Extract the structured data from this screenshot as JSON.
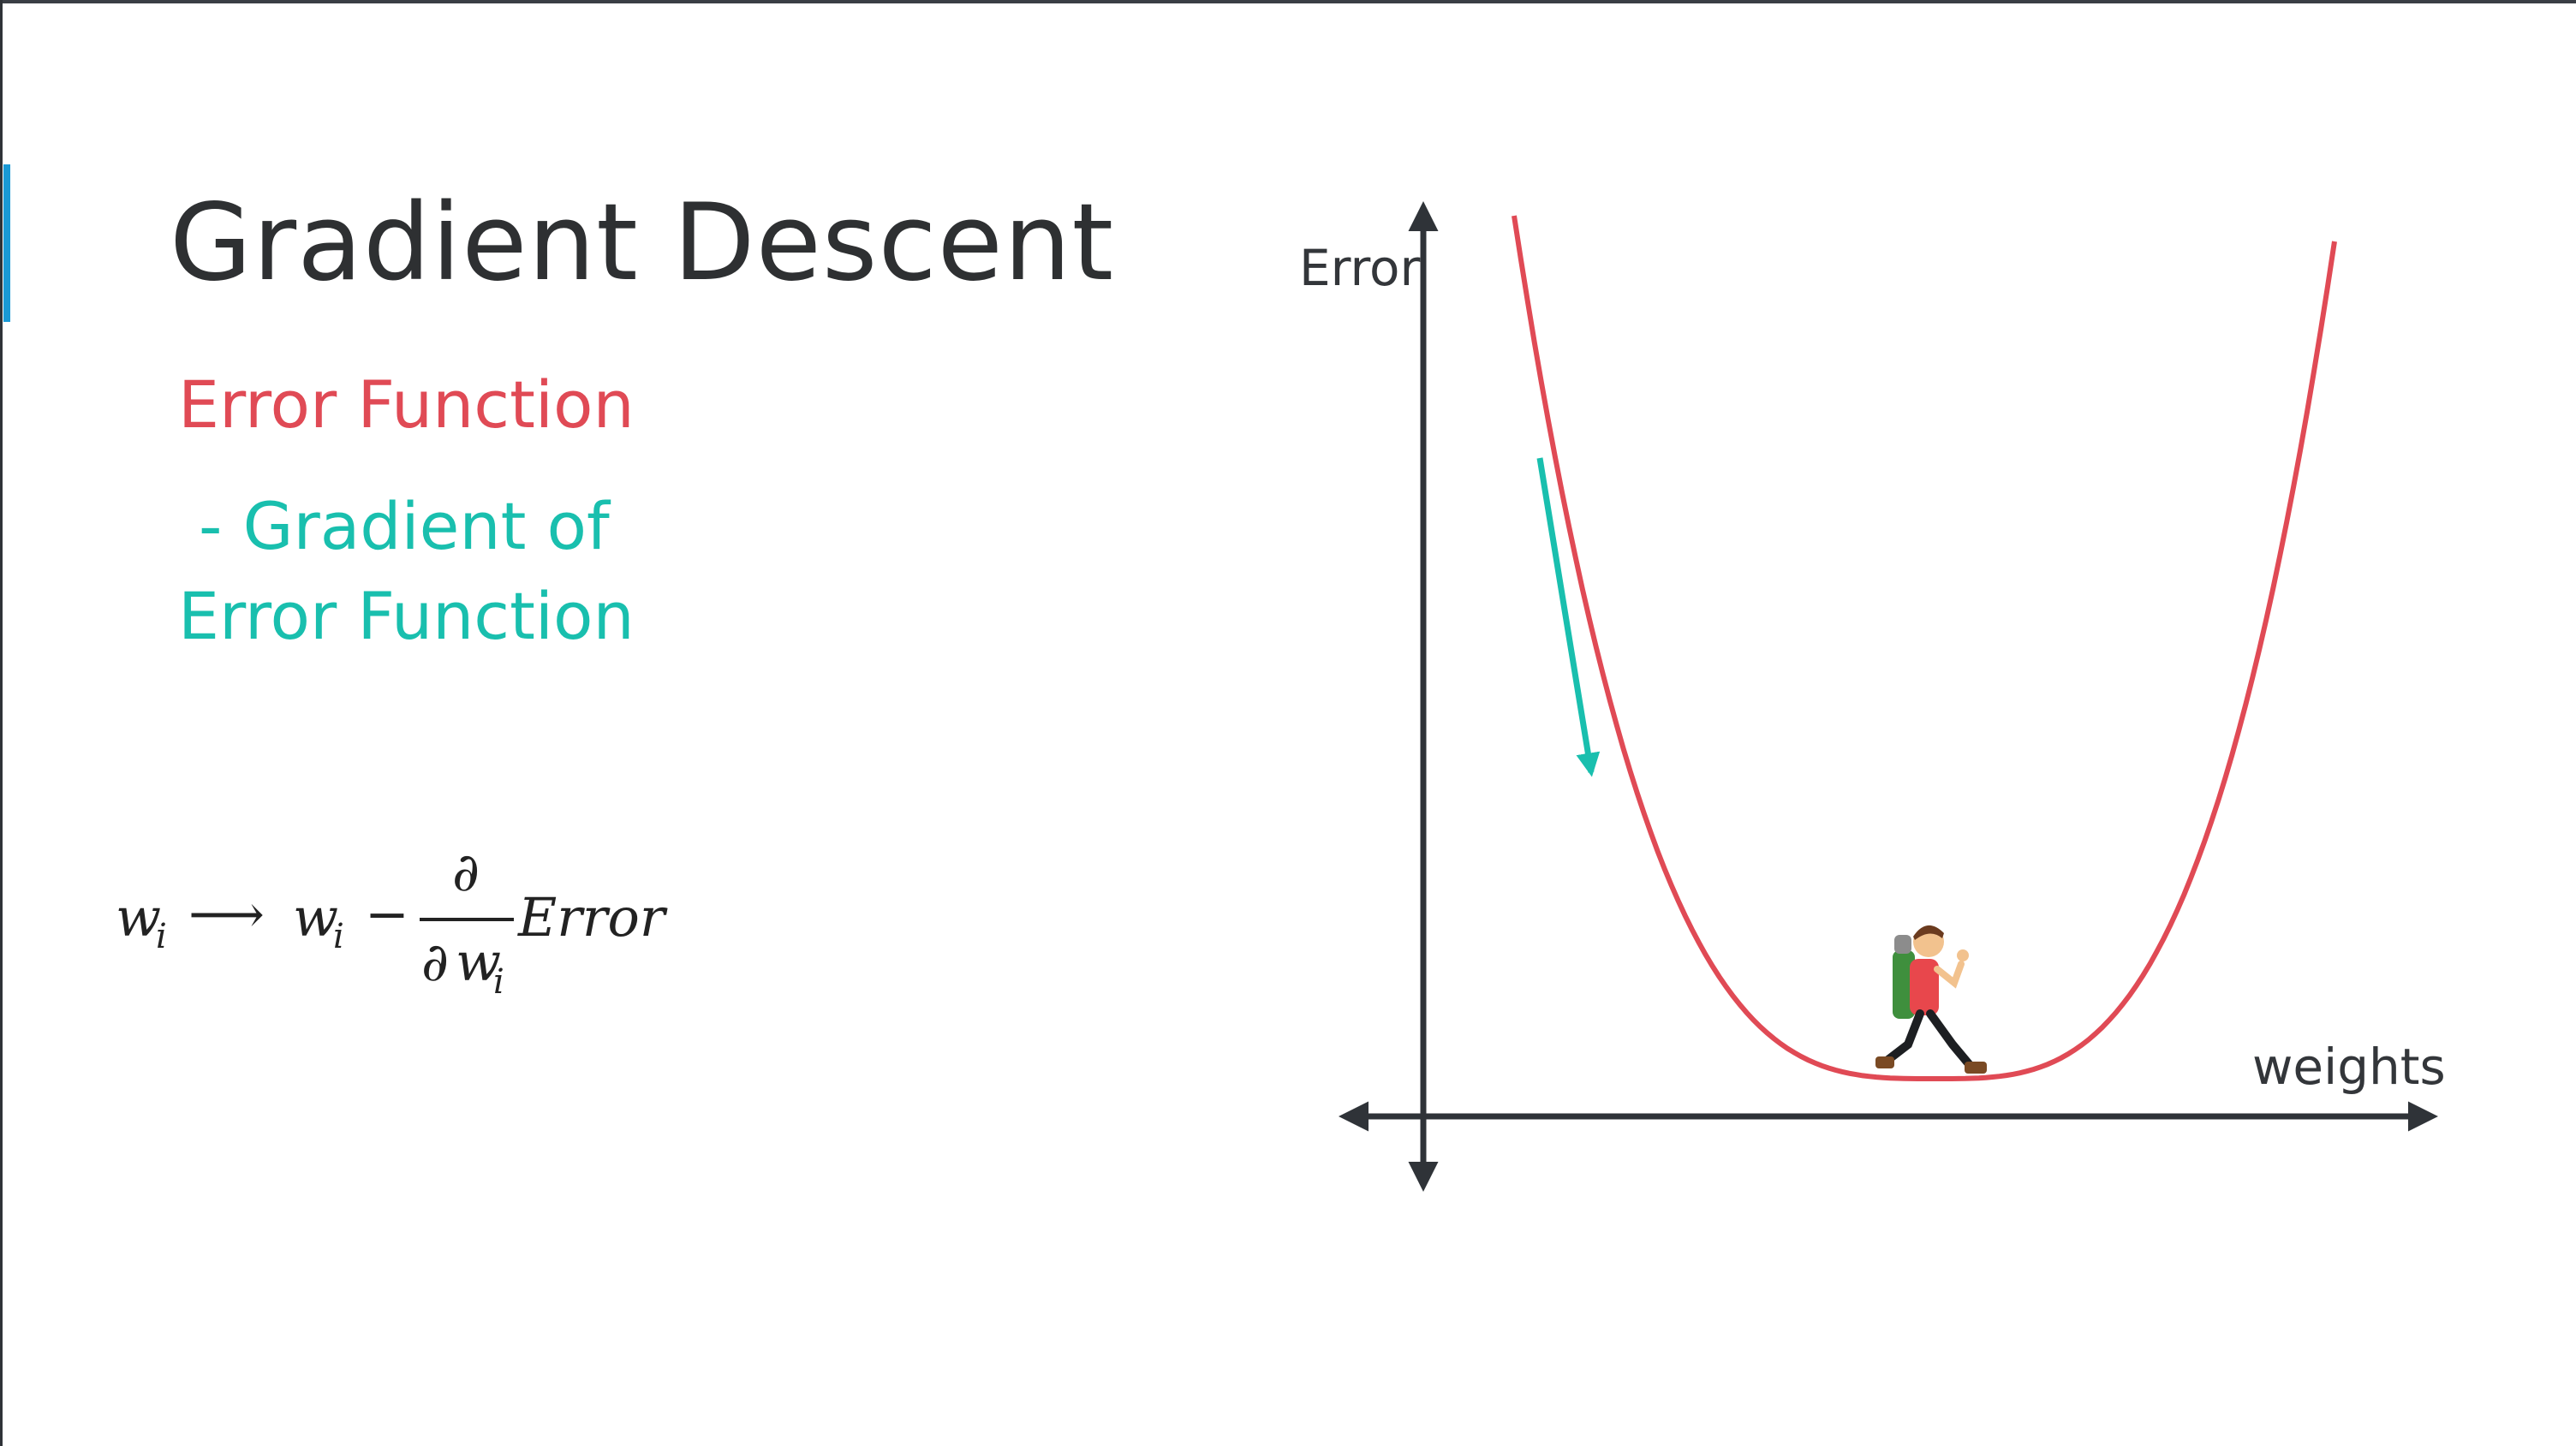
{
  "slide": {
    "title": "Gradient Descent",
    "line1": "Error Function",
    "line2": "- Gradient of",
    "line3": "Error Function"
  },
  "formula": {
    "w": "w",
    "i": "i",
    "arrow": "⟶",
    "minus": "−",
    "partial": "∂",
    "error": "Error"
  },
  "diagram": {
    "y_axis_label": "Error",
    "x_axis_label": "weights",
    "colors": {
      "curve": "#e04a55",
      "gradient_arrow": "#19bfae",
      "axes": "#2f3338",
      "accent": "#1a9ad6"
    },
    "icons": [
      "hiker-icon"
    ]
  }
}
